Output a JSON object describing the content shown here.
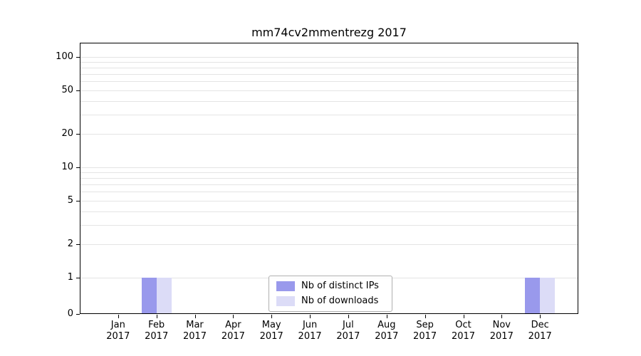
{
  "chart_data": {
    "type": "bar",
    "title": "mm74cv2mmentrezg 2017",
    "categories": [
      "Jan 2017",
      "Feb 2017",
      "Mar 2017",
      "Apr 2017",
      "May 2017",
      "Jun 2017",
      "Jul 2017",
      "Aug 2017",
      "Sep 2017",
      "Oct 2017",
      "Nov 2017",
      "Dec 2017"
    ],
    "series": [
      {
        "name": "Nb of distinct IPs",
        "color": "#9999ec",
        "values": [
          0,
          1,
          0,
          0,
          0,
          0,
          0,
          0,
          0,
          0,
          0,
          1
        ]
      },
      {
        "name": "Nb of downloads",
        "color": "#dcdcf7",
        "values": [
          0,
          1,
          0,
          0,
          0,
          0,
          0,
          0,
          0,
          0,
          0,
          1
        ]
      }
    ],
    "y_ticks": [
      0,
      1,
      2,
      5,
      10,
      20,
      50,
      100
    ],
    "y_scale": "log (linear below 1, 0 pinned at baseline)",
    "ylim": [
      0,
      135
    ],
    "grid": true,
    "grid_color": "#e4e4e4",
    "axis_color": "#000000",
    "background": "#ffffff",
    "legend_position": "lower center"
  }
}
